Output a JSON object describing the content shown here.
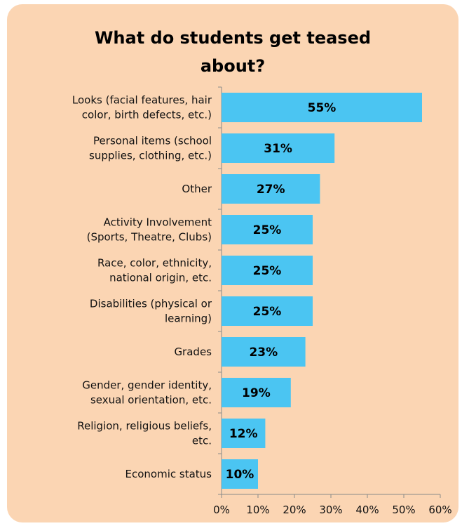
{
  "chart_data": {
    "type": "bar",
    "orientation": "horizontal",
    "title": "What do students get teased about?",
    "categories": [
      [
        "Looks (facial features, hair",
        "color, birth defects, etc.)"
      ],
      [
        "Personal items (school",
        "supplies, clothing, etc.)"
      ],
      [
        "Other"
      ],
      [
        "Activity Involvement",
        "(Sports, Theatre, Clubs)"
      ],
      [
        "Race, color, ethnicity,",
        "national origin, etc."
      ],
      [
        "Disabilities (physical or",
        "learning)"
      ],
      [
        "Grades"
      ],
      [
        "Gender, gender identity,",
        "sexual orientation, etc."
      ],
      [
        "Religion, religious beliefs,",
        "etc."
      ],
      [
        "Economic status"
      ]
    ],
    "values": [
      55,
      31,
      27,
      25,
      25,
      25,
      23,
      19,
      12,
      10
    ],
    "value_labels": [
      "55%",
      "31%",
      "27%",
      "25%",
      "25%",
      "25%",
      "23%",
      "19%",
      "12%",
      "10%"
    ],
    "xlim": [
      0,
      60
    ],
    "xticks": [
      0,
      10,
      20,
      30,
      40,
      50,
      60
    ],
    "xtick_labels": [
      "0%",
      "10%",
      "20%",
      "30%",
      "40%",
      "50%",
      "60%"
    ],
    "bar_color": "#4bc5f2",
    "background_color": "#fbd5b3",
    "grid": false,
    "legend": "none"
  }
}
